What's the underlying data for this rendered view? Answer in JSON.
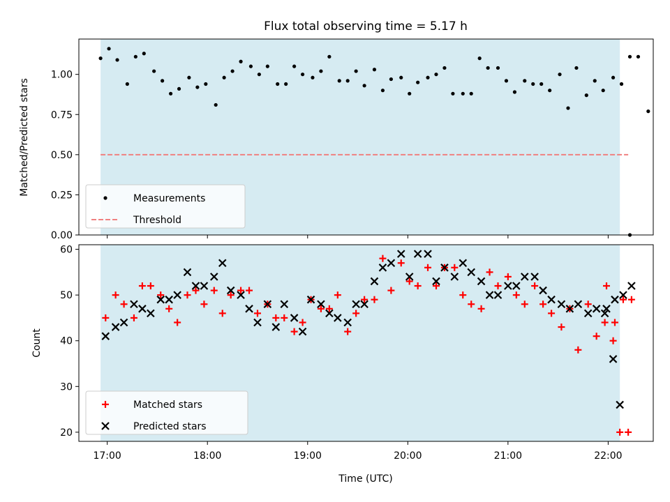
{
  "chart_data": [
    {
      "type": "scatter",
      "title": "Flux total observing time = 5.17 h",
      "xlabel": "",
      "ylabel": "Matched/Predicted stars",
      "xlim": [
        "16:43",
        "22:27"
      ],
      "ylim": [
        0,
        1.22
      ],
      "yticks": [
        0.0,
        0.25,
        0.5,
        0.75,
        1.0
      ],
      "ytick_labels": [
        "0.00",
        "0.25",
        "0.50",
        "0.75",
        "1.00"
      ],
      "shaded_region": {
        "start": "16:56",
        "end": "22:07",
        "color": "#add8e6"
      },
      "threshold": {
        "y": 0.5,
        "x_start": "16:56",
        "x_end": "22:12",
        "color": "#f08080",
        "style": "dashed"
      },
      "legend": {
        "position": "lower-left",
        "entries": [
          "Measurements",
          "Threshold"
        ]
      },
      "series": [
        {
          "name": "Measurements",
          "color": "#000000",
          "marker": "dot",
          "points": [
            [
              "16:56",
              1.1
            ],
            [
              "17:01",
              1.16
            ],
            [
              "17:06",
              1.09
            ],
            [
              "17:12",
              0.94
            ],
            [
              "17:17",
              1.11
            ],
            [
              "17:22",
              1.13
            ],
            [
              "17:28",
              1.02
            ],
            [
              "17:33",
              0.96
            ],
            [
              "17:38",
              0.88
            ],
            [
              "17:43",
              0.91
            ],
            [
              "17:49",
              0.98
            ],
            [
              "17:54",
              0.92
            ],
            [
              "17:59",
              0.94
            ],
            [
              "18:05",
              0.81
            ],
            [
              "18:10",
              0.98
            ],
            [
              "18:15",
              1.02
            ],
            [
              "18:20",
              1.08
            ],
            [
              "18:26",
              1.05
            ],
            [
              "18:31",
              1.0
            ],
            [
              "18:36",
              1.05
            ],
            [
              "18:42",
              0.94
            ],
            [
              "18:47",
              0.94
            ],
            [
              "18:52",
              1.05
            ],
            [
              "18:57",
              1.0
            ],
            [
              "19:03",
              0.98
            ],
            [
              "19:08",
              1.02
            ],
            [
              "19:13",
              1.11
            ],
            [
              "19:19",
              0.96
            ],
            [
              "19:24",
              0.96
            ],
            [
              "19:29",
              1.02
            ],
            [
              "19:34",
              0.93
            ],
            [
              "19:40",
              1.03
            ],
            [
              "19:45",
              0.9
            ],
            [
              "19:50",
              0.97
            ],
            [
              "19:56",
              0.98
            ],
            [
              "20:01",
              0.88
            ],
            [
              "20:06",
              0.95
            ],
            [
              "20:12",
              0.98
            ],
            [
              "20:17",
              1.0
            ],
            [
              "20:22",
              1.04
            ],
            [
              "20:27",
              0.88
            ],
            [
              "20:33",
              0.88
            ],
            [
              "20:38",
              0.88
            ],
            [
              "20:43",
              1.1
            ],
            [
              "20:48",
              1.04
            ],
            [
              "20:54",
              1.04
            ],
            [
              "20:59",
              0.96
            ],
            [
              "21:04",
              0.89
            ],
            [
              "21:10",
              0.96
            ],
            [
              "21:15",
              0.94
            ],
            [
              "21:20",
              0.94
            ],
            [
              "21:25",
              0.9
            ],
            [
              "21:31",
              1.0
            ],
            [
              "21:36",
              0.79
            ],
            [
              "21:41",
              1.04
            ],
            [
              "21:47",
              0.87
            ],
            [
              "21:52",
              0.96
            ],
            [
              "21:57",
              0.9
            ],
            [
              "22:03",
              0.98
            ],
            [
              "22:08",
              0.94
            ],
            [
              "22:13",
              1.11
            ],
            [
              "22:18",
              1.11
            ],
            [
              "22:24",
              0.77
            ],
            [
              "22:13",
              0.0
            ]
          ]
        }
      ]
    },
    {
      "type": "scatter",
      "xlabel": "Time (UTC)",
      "ylabel": "Count",
      "xlim": [
        "16:43",
        "22:27"
      ],
      "ylim": [
        18,
        61
      ],
      "yticks": [
        20,
        30,
        40,
        50,
        60
      ],
      "xticks": [
        "17:00",
        "18:00",
        "19:00",
        "20:00",
        "21:00",
        "22:00"
      ],
      "shaded_region": {
        "start": "16:56",
        "end": "22:07",
        "color": "#add8e6"
      },
      "legend": {
        "position": "lower-left",
        "entries": [
          "Matched stars",
          "Predicted stars"
        ]
      },
      "series": [
        {
          "name": "Matched stars",
          "color": "#ff0000",
          "marker": "plus",
          "points": [
            [
              "16:59",
              45
            ],
            [
              "17:05",
              50
            ],
            [
              "17:10",
              48
            ],
            [
              "17:16",
              45
            ],
            [
              "17:21",
              52
            ],
            [
              "17:26",
              52
            ],
            [
              "17:32",
              50
            ],
            [
              "17:37",
              47
            ],
            [
              "17:42",
              44
            ],
            [
              "17:48",
              50
            ],
            [
              "17:53",
              51
            ],
            [
              "17:58",
              48
            ],
            [
              "18:04",
              51
            ],
            [
              "18:09",
              46
            ],
            [
              "18:14",
              50
            ],
            [
              "18:20",
              51
            ],
            [
              "18:25",
              51
            ],
            [
              "18:30",
              46
            ],
            [
              "18:36",
              48
            ],
            [
              "18:41",
              45
            ],
            [
              "18:46",
              45
            ],
            [
              "18:52",
              42
            ],
            [
              "18:57",
              44
            ],
            [
              "19:02",
              49
            ],
            [
              "19:08",
              47
            ],
            [
              "19:13",
              47
            ],
            [
              "19:18",
              50
            ],
            [
              "19:24",
              42
            ],
            [
              "19:29",
              46
            ],
            [
              "19:34",
              49
            ],
            [
              "19:40",
              49
            ],
            [
              "19:45",
              58
            ],
            [
              "19:50",
              51
            ],
            [
              "19:56",
              57
            ],
            [
              "20:01",
              53
            ],
            [
              "20:06",
              52
            ],
            [
              "20:12",
              56
            ],
            [
              "20:17",
              52
            ],
            [
              "20:22",
              56
            ],
            [
              "20:28",
              56
            ],
            [
              "20:33",
              50
            ],
            [
              "20:38",
              48
            ],
            [
              "20:44",
              47
            ],
            [
              "20:49",
              55
            ],
            [
              "20:54",
              52
            ],
            [
              "21:00",
              54
            ],
            [
              "21:05",
              50
            ],
            [
              "21:10",
              48
            ],
            [
              "21:16",
              52
            ],
            [
              "21:21",
              48
            ],
            [
              "21:26",
              46
            ],
            [
              "21:32",
              43
            ],
            [
              "21:37",
              47
            ],
            [
              "21:42",
              38
            ],
            [
              "21:48",
              48
            ],
            [
              "21:53",
              41
            ],
            [
              "21:58",
              44
            ],
            [
              "22:04",
              44
            ],
            [
              "22:09",
              49
            ],
            [
              "22:14",
              49
            ],
            [
              "21:59",
              52
            ],
            [
              "22:03",
              40
            ],
            [
              "22:07",
              20
            ],
            [
              "22:12",
              20
            ]
          ]
        },
        {
          "name": "Predicted stars",
          "color": "#000000",
          "marker": "x",
          "points": [
            [
              "16:59",
              41
            ],
            [
              "17:05",
              43
            ],
            [
              "17:10",
              44
            ],
            [
              "17:16",
              48
            ],
            [
              "17:21",
              47
            ],
            [
              "17:26",
              46
            ],
            [
              "17:32",
              49
            ],
            [
              "17:37",
              49
            ],
            [
              "17:42",
              50
            ],
            [
              "17:48",
              55
            ],
            [
              "17:53",
              52
            ],
            [
              "17:58",
              52
            ],
            [
              "18:04",
              54
            ],
            [
              "18:09",
              57
            ],
            [
              "18:14",
              51
            ],
            [
              "18:20",
              50
            ],
            [
              "18:25",
              47
            ],
            [
              "18:30",
              44
            ],
            [
              "18:36",
              48
            ],
            [
              "18:41",
              43
            ],
            [
              "18:46",
              48
            ],
            [
              "18:52",
              45
            ],
            [
              "18:57",
              42
            ],
            [
              "19:02",
              49
            ],
            [
              "19:08",
              48
            ],
            [
              "19:13",
              46
            ],
            [
              "19:18",
              45
            ],
            [
              "19:24",
              44
            ],
            [
              "19:29",
              48
            ],
            [
              "19:34",
              48
            ],
            [
              "19:40",
              53
            ],
            [
              "19:45",
              56
            ],
            [
              "19:50",
              57
            ],
            [
              "19:56",
              59
            ],
            [
              "20:01",
              54
            ],
            [
              "20:06",
              59
            ],
            [
              "20:12",
              59
            ],
            [
              "20:17",
              53
            ],
            [
              "20:22",
              56
            ],
            [
              "20:28",
              54
            ],
            [
              "20:33",
              57
            ],
            [
              "20:38",
              55
            ],
            [
              "20:44",
              53
            ],
            [
              "20:49",
              50
            ],
            [
              "20:54",
              50
            ],
            [
              "21:00",
              52
            ],
            [
              "21:05",
              52
            ],
            [
              "21:10",
              54
            ],
            [
              "21:16",
              54
            ],
            [
              "21:21",
              51
            ],
            [
              "21:26",
              49
            ],
            [
              "21:32",
              48
            ],
            [
              "21:37",
              47
            ],
            [
              "21:42",
              48
            ],
            [
              "21:48",
              46
            ],
            [
              "21:53",
              47
            ],
            [
              "21:58",
              46
            ],
            [
              "22:04",
              49
            ],
            [
              "22:09",
              50
            ],
            [
              "22:14",
              52
            ],
            [
              "21:59",
              47
            ],
            [
              "22:03",
              36
            ],
            [
              "22:07",
              26
            ]
          ]
        }
      ]
    }
  ]
}
